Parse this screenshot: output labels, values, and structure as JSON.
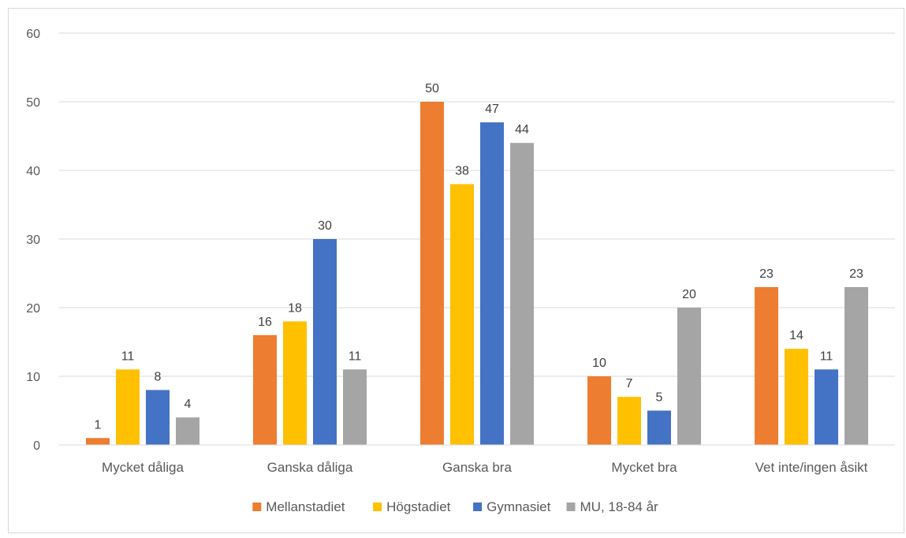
{
  "chart_data": {
    "type": "bar",
    "title": "",
    "xlabel": "",
    "ylabel": "",
    "ylim": [
      0,
      60
    ],
    "yticks": [
      0,
      10,
      20,
      30,
      40,
      50,
      60
    ],
    "grid": true,
    "legend_position": "bottom",
    "categories": [
      "Mycket dåliga",
      "Ganska dåliga",
      "Ganska bra",
      "Mycket bra",
      "Vet inte/ingen åsikt"
    ],
    "series": [
      {
        "name": "Mellanstadiet",
        "color": "#ED7D31",
        "values": [
          1,
          16,
          50,
          10,
          23
        ]
      },
      {
        "name": "Högstadiet",
        "color": "#FFC000",
        "values": [
          11,
          18,
          38,
          7,
          14
        ]
      },
      {
        "name": "Gymnasiet",
        "color": "#4472C4",
        "values": [
          8,
          30,
          47,
          5,
          11
        ]
      },
      {
        "name": "MU, 18-84 år",
        "color": "#A5A5A5",
        "values": [
          4,
          11,
          44,
          20,
          23
        ]
      }
    ]
  }
}
